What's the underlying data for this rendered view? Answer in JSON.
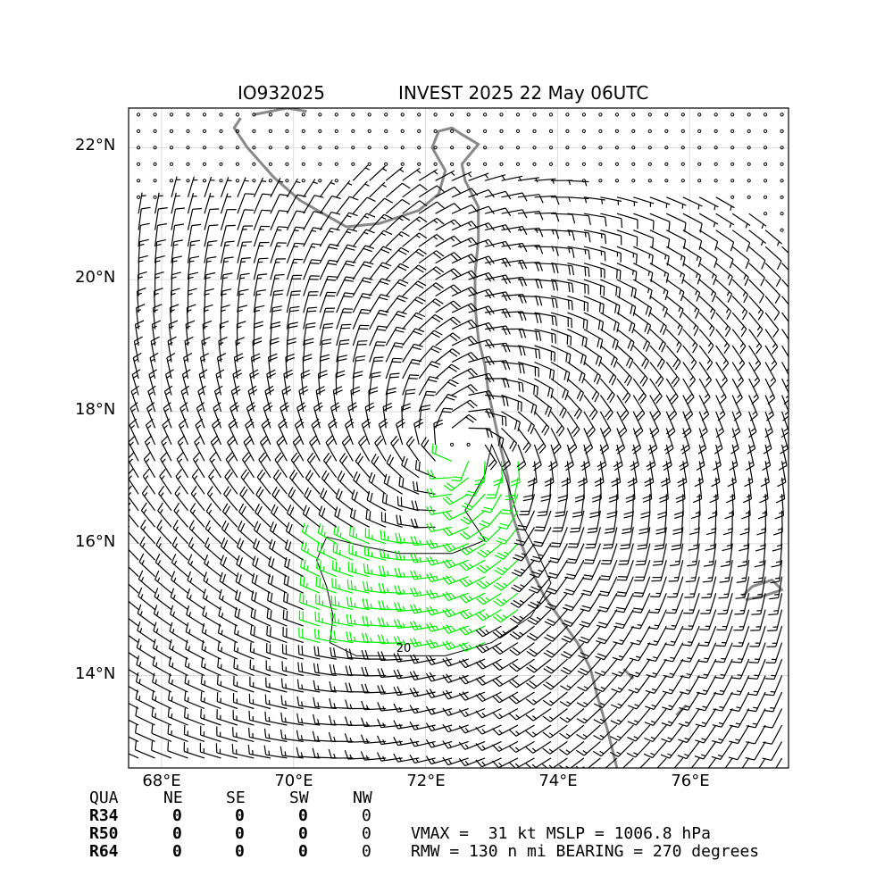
{
  "title": {
    "storm_id": "IO932025",
    "main": "INVEST 2025 22 May 06UTC"
  },
  "map": {
    "lon_range": [
      67.5,
      77.5
    ],
    "lat_range": [
      12.6,
      22.6
    ],
    "grid_step_deg": 0.25,
    "lat_labels": [
      "22°N",
      "20°N",
      "18°N",
      "16°N",
      "14°N"
    ],
    "lon_labels": [
      "68°E",
      "70°E",
      "72°E",
      "74°E",
      "76°E"
    ],
    "center": {
      "lon": 72.5,
      "lat": 17.35
    },
    "contour_label": "20",
    "colors": {
      "barb": "#000000",
      "gale_barb": "#00ee00",
      "coast": "#888888",
      "grid": "#d3d3d3"
    }
  },
  "table": {
    "header": [
      "QUA",
      "NE",
      "SE",
      "SW",
      "NW"
    ],
    "rows": [
      {
        "label": "R34",
        "values": [
          "0",
          "0",
          "0",
          "0"
        ]
      },
      {
        "label": "R50",
        "values": [
          "0",
          "0",
          "0",
          "0"
        ]
      },
      {
        "label": "R64",
        "values": [
          "0",
          "0",
          "0",
          "0"
        ]
      }
    ]
  },
  "summary": {
    "line1": "VMAX =  31 kt MSLP = 1006.8 hPa",
    "line2": "RMW = 130 n mi BEARING = 270 degrees"
  }
}
